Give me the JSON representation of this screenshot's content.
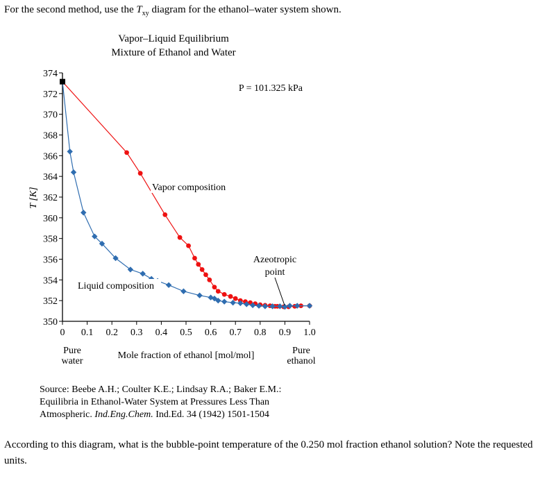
{
  "intro": {
    "before": "For the second method, use the ",
    "symbol": "T",
    "symbol_sub": "xy",
    "after": " diagram for the ethanol–water system shown."
  },
  "chart_data": {
    "type": "line",
    "title": "Vapor–Liquid Equilibrium",
    "subtitle": "Mixture of Ethanol and Water",
    "xlabel": "Mole fraction of ethanol [mol/mol]",
    "ylabel": "T [K]",
    "xlim": [
      0,
      1.0
    ],
    "ylim": [
      350,
      374
    ],
    "x_ticks": [
      "0",
      "0.1",
      "0.2",
      "0.3",
      "0.4",
      "0.5",
      "0.6",
      "0.7",
      "0.8",
      "0.9",
      "1.0"
    ],
    "y_ticks": [
      "350",
      "352",
      "354",
      "356",
      "358",
      "360",
      "362",
      "364",
      "366",
      "368",
      "370",
      "372",
      "374"
    ],
    "x_end_labels": {
      "left": [
        "Pure",
        "water"
      ],
      "right": [
        "Pure",
        "ethanol"
      ]
    },
    "pressure_label": "P = 101.325 kPa",
    "grid": false,
    "pure_water_point": {
      "x": 0.0,
      "y": 373.15
    },
    "series": [
      {
        "name": "Vapor composition",
        "color": "#ee1111",
        "marker": "circle",
        "points": [
          [
            0.0,
            373.15
          ],
          [
            0.26,
            366.3
          ],
          [
            0.315,
            364.3
          ],
          [
            0.415,
            360.3
          ],
          [
            0.475,
            358.1
          ],
          [
            0.51,
            357.3
          ],
          [
            0.535,
            356.1
          ],
          [
            0.55,
            355.5
          ],
          [
            0.565,
            355.0
          ],
          [
            0.58,
            354.5
          ],
          [
            0.595,
            354.0
          ],
          [
            0.615,
            353.3
          ],
          [
            0.63,
            352.9
          ],
          [
            0.655,
            352.6
          ],
          [
            0.68,
            352.4
          ],
          [
            0.7,
            352.2
          ],
          [
            0.72,
            352.0
          ],
          [
            0.74,
            351.9
          ],
          [
            0.76,
            351.8
          ],
          [
            0.78,
            351.7
          ],
          [
            0.8,
            351.6
          ],
          [
            0.82,
            351.55
          ],
          [
            0.84,
            351.5
          ],
          [
            0.86,
            351.45
          ],
          [
            0.87,
            351.45
          ],
          [
            0.895,
            351.4
          ],
          [
            0.915,
            351.4
          ],
          [
            0.94,
            351.45
          ],
          [
            0.965,
            351.5
          ],
          [
            1.0,
            351.5
          ]
        ]
      },
      {
        "name": "Liquid composition",
        "color": "#2f6db0",
        "marker": "diamond",
        "points": [
          [
            0.0,
            373.15
          ],
          [
            0.03,
            366.4
          ],
          [
            0.045,
            364.4
          ],
          [
            0.085,
            360.5
          ],
          [
            0.13,
            358.2
          ],
          [
            0.16,
            357.5
          ],
          [
            0.215,
            356.1
          ],
          [
            0.275,
            355.0
          ],
          [
            0.325,
            354.6
          ],
          [
            0.36,
            354.1
          ],
          [
            0.385,
            353.9
          ],
          [
            0.43,
            353.5
          ],
          [
            0.49,
            352.9
          ],
          [
            0.555,
            352.5
          ],
          [
            0.6,
            352.3
          ],
          [
            0.615,
            352.2
          ],
          [
            0.63,
            352.0
          ],
          [
            0.655,
            351.9
          ],
          [
            0.69,
            351.8
          ],
          [
            0.72,
            351.75
          ],
          [
            0.745,
            351.65
          ],
          [
            0.77,
            351.55
          ],
          [
            0.795,
            351.5
          ],
          [
            0.82,
            351.45
          ],
          [
            0.85,
            351.45
          ],
          [
            0.88,
            351.45
          ],
          [
            0.9,
            351.4
          ],
          [
            0.92,
            351.5
          ],
          [
            0.95,
            351.5
          ],
          [
            1.0,
            351.5
          ]
        ]
      }
    ],
    "annotations": [
      {
        "text": "Vapor composition",
        "lines": [
          "Vapor composition"
        ]
      },
      {
        "text": "Liquid composition",
        "lines": [
          "Liquid composition"
        ]
      },
      {
        "text": "Azeotropic point",
        "lines": [
          "Azeotropic",
          "point"
        ]
      }
    ]
  },
  "source": {
    "prefix": "Source: Beebe A.H.; Coulter K.E.; Lindsay R.A.; Baker E.M.:",
    "line2": "Equilibria in Ethanol-Water System at Pressures Less Than",
    "line3_pre": "Atmospheric. ",
    "journal": "Ind.Eng.Chem.",
    "line3_post": " Ind.Ed. 34 (1942) 1501-1504"
  },
  "question": "According to this diagram, what is the bubble-point temperature of the 0.250 mol fraction ethanol solution? Note the requested units."
}
